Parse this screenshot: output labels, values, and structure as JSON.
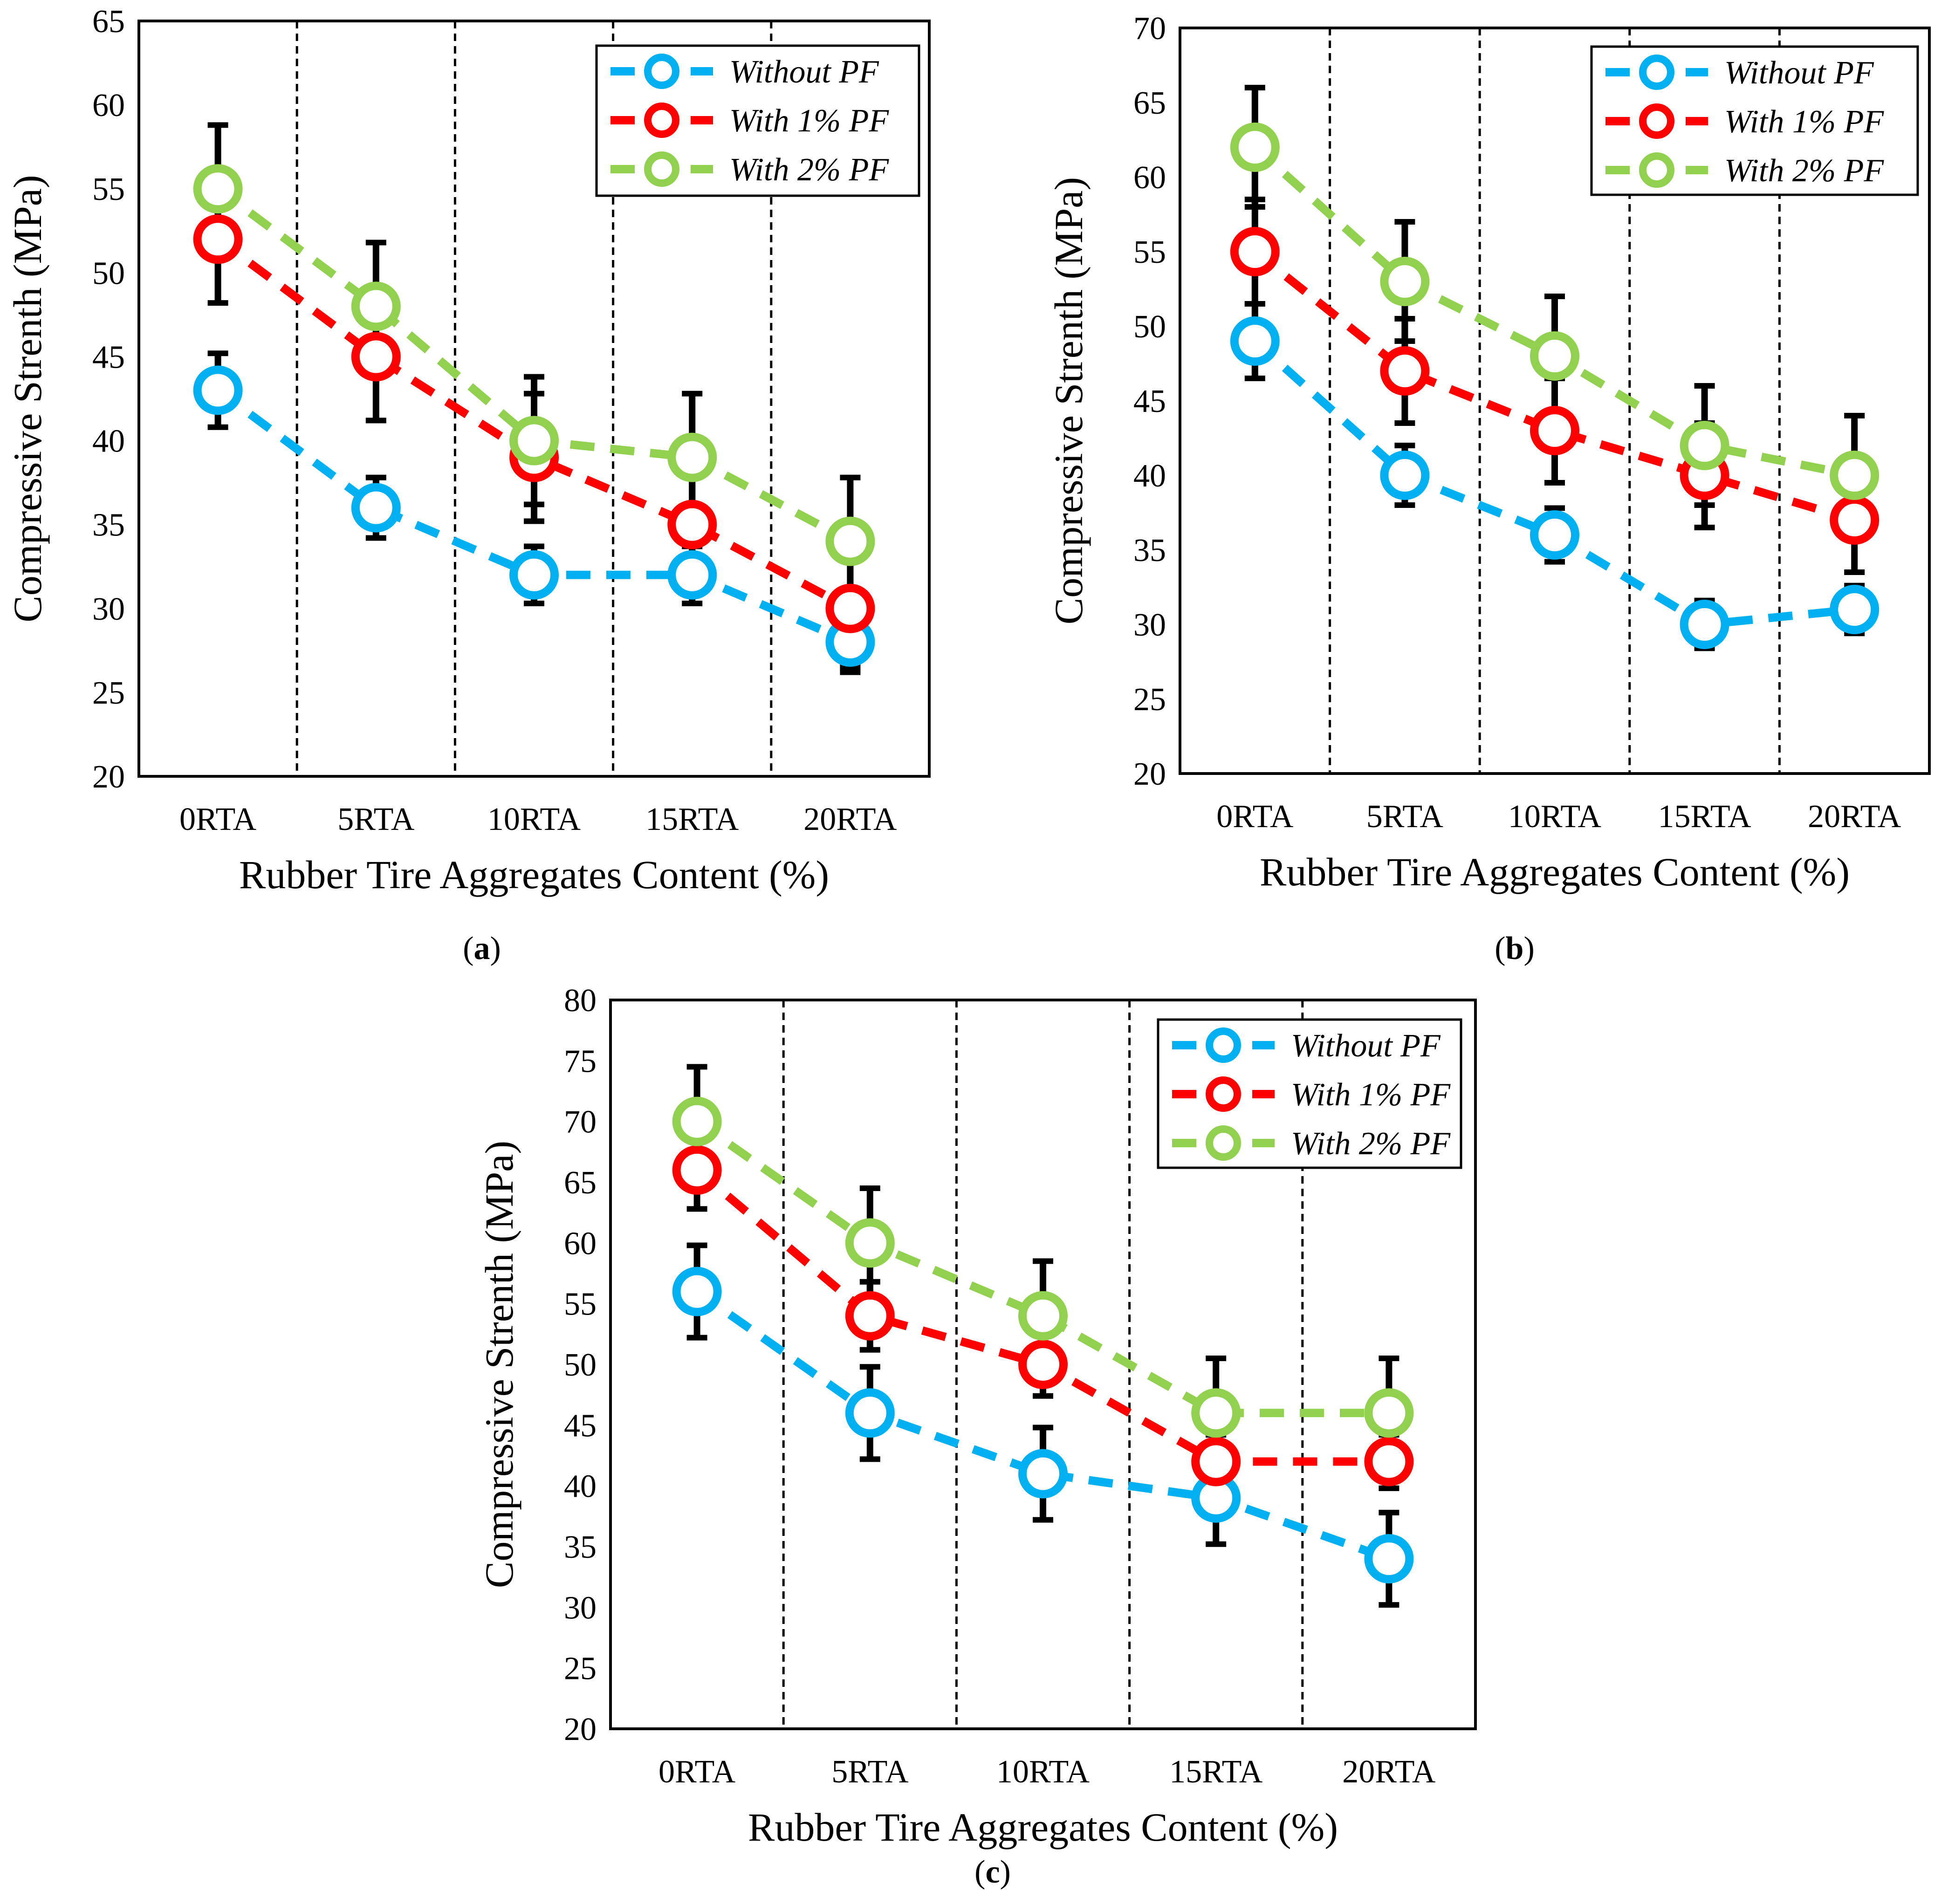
{
  "chart_data": [
    {
      "panel": "a",
      "type": "line",
      "caption_letter": "a",
      "xlabel": "Rubber Tire Aggregates Content (%)",
      "ylabel": "Compressive Strenth (MPa)",
      "ylim": [
        20,
        65
      ],
      "yticks": [
        20,
        25,
        30,
        35,
        40,
        45,
        50,
        55,
        60,
        65
      ],
      "categories": [
        "0RTA",
        "5RTA",
        "10RTA",
        "15RTA",
        "20RTA"
      ],
      "legend_position": "top-right",
      "series": [
        {
          "name": "Without PF",
          "color": "#00b0f0",
          "values": [
            43,
            36,
            32,
            32,
            28
          ],
          "error": [
            2.2,
            1.8,
            1.7,
            1.7,
            1.8
          ]
        },
        {
          "name": "With 1% PF",
          "color": "#ff0000",
          "values": [
            52,
            45,
            39,
            35,
            30
          ],
          "error": [
            3.8,
            3.8,
            3.8,
            3.5,
            3.5
          ]
        },
        {
          "name": "With 2% PF",
          "color": "#92d050",
          "values": [
            55,
            48,
            40,
            39,
            34
          ],
          "error": [
            3.8,
            3.8,
            3.8,
            3.8,
            3.8
          ]
        }
      ]
    },
    {
      "panel": "b",
      "type": "line",
      "caption_letter": "b",
      "xlabel": "Rubber Tire Aggregates Content (%)",
      "ylabel": "Compressive Strenth (MPa)",
      "ylim": [
        20,
        70
      ],
      "yticks": [
        20,
        25,
        30,
        35,
        40,
        45,
        50,
        55,
        60,
        65,
        70
      ],
      "categories": [
        "0RTA",
        "5RTA",
        "10RTA",
        "15RTA",
        "20RTA"
      ],
      "legend_position": "top-right",
      "series": [
        {
          "name": "Without PF",
          "color": "#00b0f0",
          "values": [
            49,
            40,
            36,
            30,
            31
          ],
          "error": [
            2.5,
            2.0,
            1.8,
            1.6,
            1.6
          ]
        },
        {
          "name": "With 1% PF",
          "color": "#ff0000",
          "values": [
            55,
            47,
            43,
            40,
            37
          ],
          "error": [
            3.5,
            3.5,
            3.5,
            3.5,
            3.5
          ]
        },
        {
          "name": "With 2% PF",
          "color": "#92d050",
          "values": [
            62,
            53,
            48,
            42,
            40
          ],
          "error": [
            4.0,
            4.0,
            4.0,
            4.0,
            4.0
          ]
        }
      ]
    },
    {
      "panel": "c",
      "type": "line",
      "caption_letter": "c",
      "xlabel": "Rubber Tire Aggregates Content (%)",
      "ylabel": "Compressive Strenth (MPa)",
      "ylim": [
        20,
        80
      ],
      "yticks": [
        20,
        25,
        30,
        35,
        40,
        45,
        50,
        55,
        60,
        65,
        70,
        75,
        80
      ],
      "categories": [
        "0RTA",
        "5RTA",
        "10RTA",
        "15RTA",
        "20RTA"
      ],
      "legend_position": "top-right",
      "series": [
        {
          "name": "Without PF",
          "color": "#00b0f0",
          "values": [
            56,
            46,
            41,
            39,
            34
          ],
          "error": [
            3.8,
            3.8,
            3.8,
            3.8,
            3.8
          ]
        },
        {
          "name": "With 1% PF",
          "color": "#ff0000",
          "values": [
            66,
            54,
            50,
            42,
            42
          ],
          "error": [
            3.2,
            2.8,
            2.6,
            2.2,
            2.2
          ]
        },
        {
          "name": "With 2% PF",
          "color": "#92d050",
          "values": [
            70,
            60,
            54,
            46,
            46
          ],
          "error": [
            4.5,
            4.5,
            4.5,
            4.5,
            4.5
          ]
        }
      ]
    }
  ]
}
